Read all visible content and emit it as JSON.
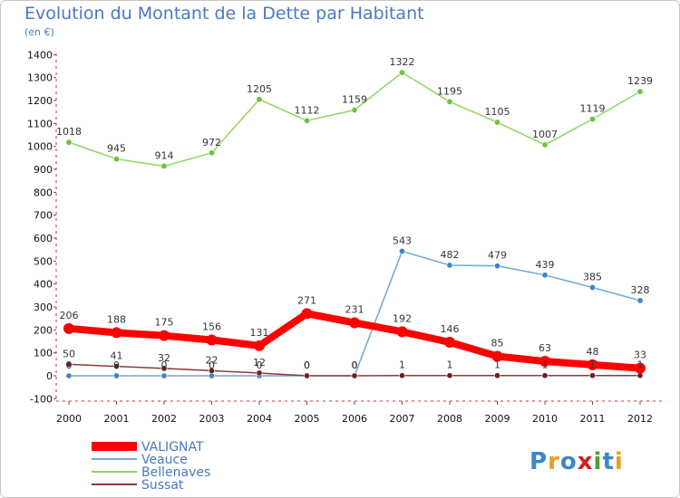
{
  "chart_data": {
    "type": "line",
    "title": "Evolution du Montant de la Dette par Habitant",
    "subtitle": "(en €)",
    "x": [
      "2000",
      "2001",
      "2002",
      "2003",
      "2004",
      "2005",
      "2006",
      "2007",
      "2008",
      "2009",
      "2010",
      "2011",
      "2012"
    ],
    "ylim": [
      -100,
      1400
    ],
    "yticks": [
      -100,
      0,
      100,
      200,
      300,
      400,
      500,
      600,
      700,
      800,
      900,
      1000,
      1100,
      1200,
      1300,
      1400
    ],
    "grid": false,
    "legend_position": "bottom-left",
    "series": [
      {
        "name": "Bellenaves",
        "color": "#8fd760",
        "marker_color": "#6ec23c",
        "values": [
          1018,
          945,
          914,
          972,
          1205,
          1112,
          1159,
          1322,
          1195,
          1105,
          1007,
          1119,
          1239
        ],
        "labels": [
          "1018",
          "945",
          "914",
          "972",
          "1205",
          "1112",
          "1159",
          "1322",
          "1195",
          "1105",
          "1007",
          "1119",
          "1239"
        ]
      },
      {
        "name": "Veauce",
        "color": "#6ea8d6",
        "marker_color": "#3d86c6",
        "values": [
          0,
          0,
          0,
          0,
          0,
          0,
          0,
          543,
          482,
          479,
          439,
          385,
          328
        ],
        "labels": [
          "0",
          "0",
          "0",
          "0",
          "0",
          "0",
          "0",
          "543",
          "482",
          "479",
          "439",
          "385",
          "328"
        ]
      },
      {
        "name": "Sussat",
        "color": "#8a3a3a",
        "marker_color": "#6a2222",
        "values": [
          50,
          41,
          32,
          22,
          12,
          0,
          0,
          1,
          1,
          1,
          1,
          1,
          1
        ],
        "labels": [
          "50",
          "41",
          "32",
          "22",
          "12",
          "0",
          "0",
          "1",
          "1",
          "1",
          "1",
          "1",
          "1"
        ]
      },
      {
        "name": "VALIGNAT",
        "color": "#ff0000",
        "marker_color": "#ff0000",
        "values": [
          206,
          188,
          175,
          156,
          131,
          271,
          231,
          192,
          146,
          85,
          63,
          48,
          33
        ],
        "labels": [
          "206",
          "188",
          "175",
          "156",
          "131",
          "271",
          "231",
          "192",
          "146",
          "85",
          "63",
          "48",
          "33"
        ]
      }
    ],
    "legend": [
      "VALIGNAT",
      "Veauce",
      "Bellenaves",
      "Sussat"
    ]
  },
  "logo": {
    "text": "Proxiti",
    "colors": [
      "#3d86c6",
      "#e8a020",
      "#3d86c6",
      "#d02020",
      "#4aa030",
      "#3d86c6",
      "#e8a020"
    ]
  }
}
